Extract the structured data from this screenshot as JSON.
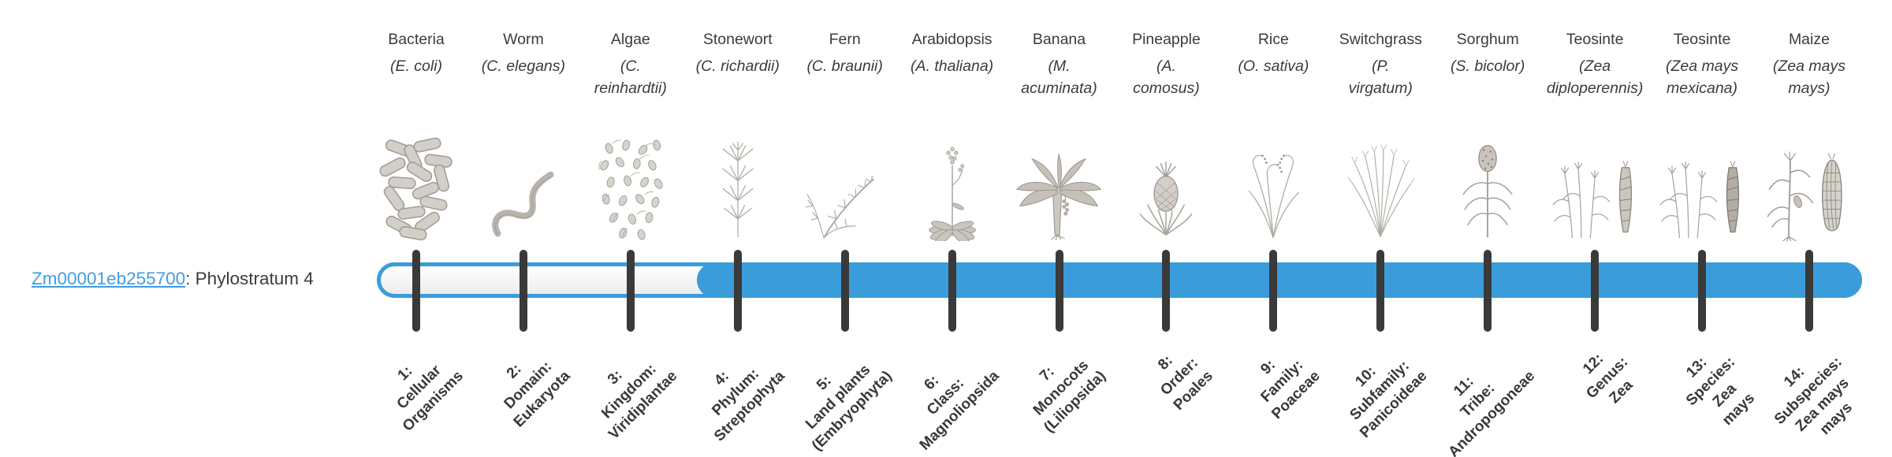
{
  "gene": {
    "id": "Zm00001eb255700",
    "annotation": ": Phylostratum 4",
    "phylostratum": 4
  },
  "colors": {
    "bar_fill": "#3b9cdb",
    "bar_outline": "#3b9cdb",
    "tick": "#3a3a3a",
    "link": "#3f9ee3",
    "text": "#3b3b3b",
    "illustration_gray": "#a9a59d"
  },
  "phylostrata": [
    {
      "number": 1,
      "rank_label": [
        "1:",
        "Cellular",
        "Organisms"
      ],
      "organism": "Bacteria",
      "species": "(E. coli)",
      "icon": "bacteria",
      "in_gene_range": false
    },
    {
      "number": 2,
      "rank_label": [
        "2:",
        "Domain:",
        "Eukaryota"
      ],
      "organism": "Worm",
      "species": "(C. elegans)",
      "icon": "worm",
      "in_gene_range": false
    },
    {
      "number": 3,
      "rank_label": [
        "3:",
        "Kingdom:",
        "Viridiplantae"
      ],
      "organism": "Algae",
      "species": "(C.\nreinhardtii)",
      "icon": "algae",
      "in_gene_range": false
    },
    {
      "number": 4,
      "rank_label": [
        "4:",
        "Phylum:",
        "Streptophyta"
      ],
      "organism": "Stonewort",
      "species": "(C. richardii)",
      "icon": "stonewort",
      "in_gene_range": true
    },
    {
      "number": 5,
      "rank_label": [
        "5:",
        "Land plants",
        "(Embryophyta)"
      ],
      "organism": "Fern",
      "species": "(C. braunii)",
      "icon": "fern",
      "in_gene_range": true
    },
    {
      "number": 6,
      "rank_label": [
        "6:",
        "Class:",
        "Magnoliopsida"
      ],
      "organism": "Arabidopsis",
      "species": "(A. thaliana)",
      "icon": "arabidopsis",
      "in_gene_range": true
    },
    {
      "number": 7,
      "rank_label": [
        "7:",
        "Monocots",
        "(Liliopsida)"
      ],
      "organism": "Banana",
      "species": "(M.\nacuminata)",
      "icon": "banana",
      "in_gene_range": true
    },
    {
      "number": 8,
      "rank_label": [
        "8:",
        "Order:",
        "Poales"
      ],
      "organism": "Pineapple",
      "species": "(A.\ncomosus)",
      "icon": "pineapple",
      "in_gene_range": true
    },
    {
      "number": 9,
      "rank_label": [
        "9:",
        "Family:",
        "Poaceae"
      ],
      "organism": "Rice",
      "species": "(O. sativa)",
      "icon": "rice",
      "in_gene_range": true
    },
    {
      "number": 10,
      "rank_label": [
        "10:",
        "Subfamily:",
        "Panicoideae"
      ],
      "organism": "Switchgrass",
      "species": "(P.\nvirgatum)",
      "icon": "switchgrass",
      "in_gene_range": true
    },
    {
      "number": 11,
      "rank_label": [
        "11:",
        "Tribe:",
        "Andropogoneae"
      ],
      "organism": "Sorghum",
      "species": "(S. bicolor)",
      "icon": "sorghum",
      "in_gene_range": true
    },
    {
      "number": 12,
      "rank_label": [
        "12:",
        "Genus:",
        "Zea"
      ],
      "organism": "Teosinte",
      "species": "(Zea\ndiploperennis)",
      "icon": "teosinte-diploperennis",
      "in_gene_range": true
    },
    {
      "number": 13,
      "rank_label": [
        "13:",
        "Species:",
        "Zea",
        "mays"
      ],
      "organism": "Teosinte",
      "species": "(Zea mays\nmexicana)",
      "icon": "teosinte-mexicana",
      "in_gene_range": true
    },
    {
      "number": 14,
      "rank_label": [
        "14:",
        "Subspecies:",
        "Zea mays",
        "mays"
      ],
      "organism": "Maize",
      "species": "(Zea mays\nmays)",
      "icon": "maize",
      "in_gene_range": true
    }
  ]
}
